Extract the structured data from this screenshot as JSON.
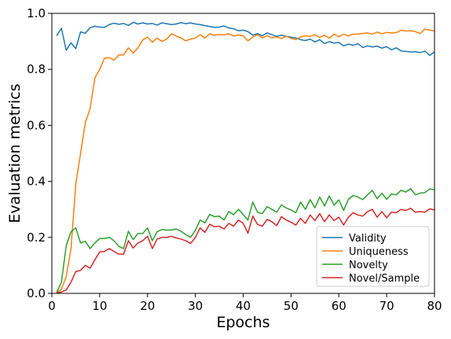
{
  "chart_data": {
    "type": "line",
    "xlabel": "Epochs",
    "ylabel": "Evaluation metrics",
    "xlim": [
      0,
      80
    ],
    "ylim": [
      0,
      1.0
    ],
    "xticks": [
      "0",
      "10",
      "20",
      "30",
      "40",
      "50",
      "60",
      "70",
      "80"
    ],
    "yticks": [
      "0.0",
      "0.2",
      "0.4",
      "0.6",
      "0.8",
      "1.0"
    ],
    "grid": false,
    "legend_position": "lower-right",
    "x": [
      1,
      2,
      3,
      4,
      5,
      6,
      7,
      8,
      9,
      10,
      11,
      12,
      13,
      14,
      15,
      16,
      17,
      18,
      19,
      20,
      21,
      22,
      23,
      24,
      25,
      26,
      27,
      28,
      29,
      30,
      31,
      32,
      33,
      34,
      35,
      36,
      37,
      38,
      39,
      40,
      41,
      42,
      43,
      44,
      45,
      46,
      47,
      48,
      49,
      50,
      51,
      52,
      53,
      54,
      55,
      56,
      57,
      58,
      59,
      60,
      61,
      62,
      63,
      64,
      65,
      66,
      67,
      68,
      69,
      70,
      71,
      72,
      73,
      74,
      75,
      76,
      77,
      78,
      79,
      80
    ],
    "series": [
      {
        "name": "Validity",
        "color": "#1f77b4",
        "values": [
          0.92,
          0.947,
          0.868,
          0.895,
          0.874,
          0.934,
          0.929,
          0.949,
          0.954,
          0.951,
          0.95,
          0.96,
          0.965,
          0.961,
          0.964,
          0.957,
          0.968,
          0.962,
          0.966,
          0.962,
          0.964,
          0.958,
          0.966,
          0.963,
          0.96,
          0.962,
          0.967,
          0.963,
          0.966,
          0.962,
          0.96,
          0.956,
          0.953,
          0.95,
          0.951,
          0.955,
          0.948,
          0.945,
          0.938,
          0.94,
          0.935,
          0.922,
          0.928,
          0.92,
          0.93,
          0.924,
          0.918,
          0.922,
          0.918,
          0.915,
          0.912,
          0.906,
          0.903,
          0.908,
          0.898,
          0.906,
          0.892,
          0.899,
          0.894,
          0.896,
          0.884,
          0.89,
          0.886,
          0.892,
          0.878,
          0.884,
          0.88,
          0.883,
          0.876,
          0.881,
          0.87,
          0.877,
          0.866,
          0.864,
          0.862,
          0.863,
          0.86,
          0.865,
          0.85,
          0.862
        ]
      },
      {
        "name": "Uniqueness",
        "color": "#ff7f0e",
        "values": [
          0.003,
          0.015,
          0.06,
          0.16,
          0.39,
          0.5,
          0.61,
          0.66,
          0.77,
          0.8,
          0.84,
          0.842,
          0.833,
          0.852,
          0.852,
          0.877,
          0.858,
          0.877,
          0.905,
          0.915,
          0.897,
          0.912,
          0.9,
          0.908,
          0.927,
          0.919,
          0.912,
          0.902,
          0.908,
          0.912,
          0.924,
          0.912,
          0.927,
          0.922,
          0.925,
          0.923,
          0.927,
          0.919,
          0.923,
          0.92,
          0.902,
          0.915,
          0.924,
          0.912,
          0.92,
          0.913,
          0.916,
          0.91,
          0.918,
          0.911,
          0.906,
          0.916,
          0.92,
          0.918,
          0.924,
          0.914,
          0.922,
          0.911,
          0.926,
          0.916,
          0.926,
          0.919,
          0.926,
          0.926,
          0.928,
          0.93,
          0.926,
          0.933,
          0.927,
          0.932,
          0.93,
          0.931,
          0.94,
          0.937,
          0.938,
          0.935,
          0.928,
          0.944,
          0.94,
          0.937
        ]
      },
      {
        "name": "Novelty",
        "color": "#2ca02c",
        "values": [
          0.003,
          0.04,
          0.17,
          0.22,
          0.234,
          0.18,
          0.186,
          0.16,
          0.18,
          0.196,
          0.196,
          0.2,
          0.188,
          0.168,
          0.16,
          0.222,
          0.192,
          0.214,
          0.214,
          0.234,
          0.188,
          0.22,
          0.228,
          0.226,
          0.226,
          0.23,
          0.222,
          0.21,
          0.2,
          0.225,
          0.262,
          0.252,
          0.282,
          0.274,
          0.276,
          0.262,
          0.292,
          0.281,
          0.3,
          0.282,
          0.262,
          0.326,
          0.29,
          0.285,
          0.31,
          0.3,
          0.29,
          0.316,
          0.305,
          0.298,
          0.288,
          0.326,
          0.3,
          0.335,
          0.306,
          0.344,
          0.312,
          0.348,
          0.315,
          0.334,
          0.296,
          0.336,
          0.35,
          0.344,
          0.335,
          0.352,
          0.368,
          0.338,
          0.358,
          0.336,
          0.355,
          0.352,
          0.368,
          0.362,
          0.374,
          0.352,
          0.358,
          0.36,
          0.373,
          0.37
        ]
      },
      {
        "name": "Novel/Sample",
        "color": "#d62728",
        "values": [
          0.002,
          0.005,
          0.012,
          0.04,
          0.078,
          0.082,
          0.1,
          0.09,
          0.12,
          0.148,
          0.15,
          0.16,
          0.15,
          0.14,
          0.14,
          0.188,
          0.162,
          0.18,
          0.188,
          0.204,
          0.16,
          0.194,
          0.2,
          0.2,
          0.204,
          0.198,
          0.194,
          0.188,
          0.178,
          0.2,
          0.234,
          0.218,
          0.247,
          0.238,
          0.24,
          0.23,
          0.25,
          0.24,
          0.262,
          0.25,
          0.215,
          0.276,
          0.246,
          0.24,
          0.264,
          0.256,
          0.242,
          0.274,
          0.262,
          0.254,
          0.244,
          0.268,
          0.25,
          0.28,
          0.26,
          0.285,
          0.256,
          0.28,
          0.26,
          0.272,
          0.244,
          0.272,
          0.288,
          0.28,
          0.276,
          0.292,
          0.3,
          0.272,
          0.292,
          0.27,
          0.29,
          0.288,
          0.3,
          0.296,
          0.304,
          0.29,
          0.292,
          0.29,
          0.302,
          0.298
        ]
      }
    ]
  }
}
